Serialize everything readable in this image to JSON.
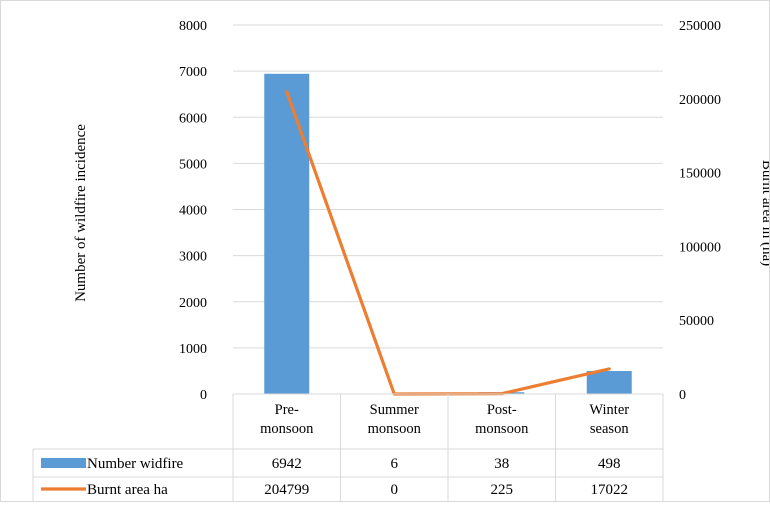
{
  "chart_data": {
    "type": "bar",
    "categories": [
      [
        "Pre-",
        "monsoon"
      ],
      [
        "Summer",
        "monsoon"
      ],
      [
        "Post-",
        "monsoon"
      ],
      [
        "Winter",
        "season"
      ]
    ],
    "series": [
      {
        "name": "Number widfire",
        "type": "bar",
        "axis": "left",
        "values": [
          6942,
          6,
          38,
          498
        ],
        "color": "#5b9bd5"
      },
      {
        "name": "Burnt area ha",
        "type": "line",
        "axis": "right",
        "values": [
          204799,
          0,
          225,
          17022
        ],
        "color": "#ed7d31"
      }
    ],
    "ylabel": "Number of wildfire  incidence",
    "y2label": "Burnt area in (ha)",
    "ylim": [
      0,
      8000
    ],
    "y2lim": [
      0,
      250000
    ],
    "yticks": [
      "0",
      "1000",
      "2000",
      "3000",
      "4000",
      "5000",
      "6000",
      "7000",
      "8000"
    ],
    "y2ticks": [
      "0",
      "50000",
      "100000",
      "150000",
      "200000",
      "250000"
    ],
    "grid": true,
    "legend": "data-table"
  },
  "table": {
    "rows": [
      {
        "label": "Number widfire",
        "cells": [
          "6942",
          "6",
          "38",
          "498"
        ]
      },
      {
        "label": "Burnt area ha",
        "cells": [
          "204799",
          "0",
          "225",
          "17022"
        ]
      }
    ]
  }
}
